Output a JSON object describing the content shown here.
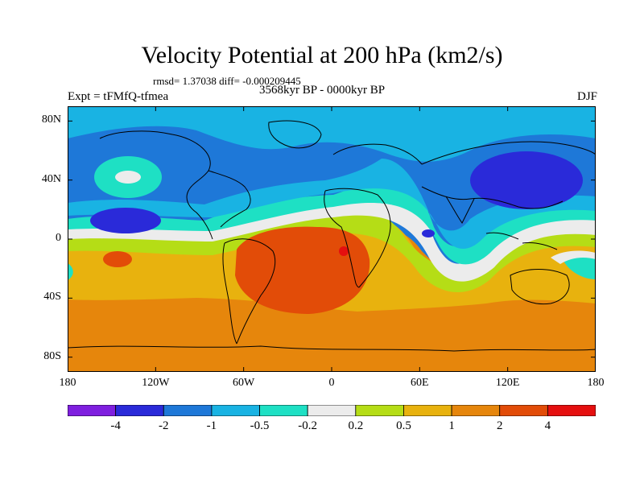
{
  "header": {
    "title": "Velocity Potential at 200 hPa (km2/s)",
    "stats": "rmsd= 1.37038 diff= -0.000209445",
    "expt": "Expt = tFMfQ-tfmea",
    "period": "3568kyr BP - 0000kyr BP",
    "season": "DJF"
  },
  "axes": {
    "lat_labels": [
      "80N",
      "40N",
      "0",
      "40S",
      "80S"
    ],
    "lat_values": [
      80,
      40,
      0,
      -40,
      -80
    ],
    "lon_labels": [
      "180",
      "120W",
      "60W",
      "0",
      "60E",
      "120E",
      "180"
    ],
    "lon_values": [
      -180,
      -120,
      -60,
      0,
      60,
      120,
      180
    ],
    "lat_range": [
      -90,
      90
    ],
    "lon_range": [
      -180,
      180
    ]
  },
  "colorbar": {
    "labels": [
      "-4",
      "-2",
      "-1",
      "-0.5",
      "-0.2",
      "0.2",
      "0.5",
      "1",
      "2",
      "4"
    ],
    "colors": [
      "#7f1fdf",
      "#2a2ad9",
      "#1e78d8",
      "#19b3e3",
      "#1ee0c4",
      "#ececec",
      "#b5dd16",
      "#e8b20e",
      "#e6860c",
      "#e24c08",
      "#e50f0f"
    ]
  },
  "map_data": {
    "field": "velocity potential difference",
    "units": "km2/s",
    "levels": [
      -4,
      -2,
      -1,
      -0.5,
      -0.2,
      0.2,
      0.5,
      1,
      2,
      4
    ],
    "features": [
      {
        "label": "negative minimum over North Pacific",
        "lon": -120,
        "lat": 15,
        "value": -3
      },
      {
        "label": "negative minimum over western Pacific",
        "lon": 140,
        "lat": 40,
        "value": -3
      },
      {
        "label": "small negative cell over Indian Ocean",
        "lon": 65,
        "lat": 2,
        "value": -2.5
      },
      {
        "label": "positive maximum over South Atlantic",
        "lon": -20,
        "lat": -20,
        "value": 3
      },
      {
        "label": "peak over central Africa",
        "lon": 10,
        "lat": -10,
        "value": 4.5
      },
      {
        "label": "positive cell over South Pacific",
        "lon": -150,
        "lat": -15,
        "value": 2.5
      }
    ]
  }
}
